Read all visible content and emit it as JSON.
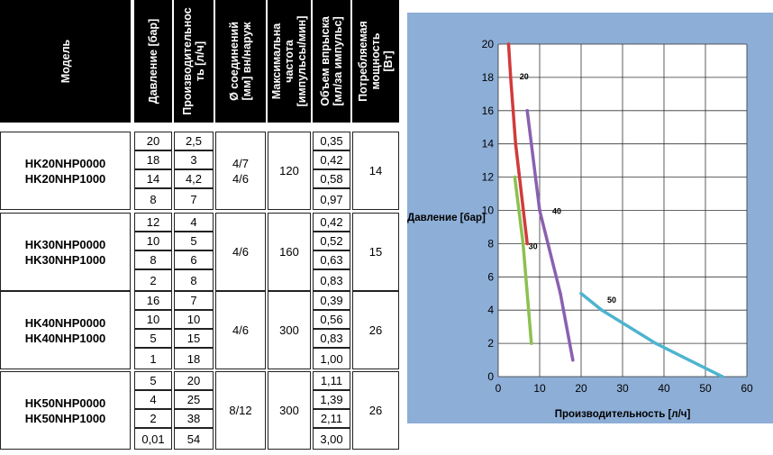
{
  "table": {
    "headers": {
      "model": "Модель",
      "pressure": "Давление [бар]",
      "capacity": "Производительнос\nть [л/ч]",
      "connection": "Ø соединений\n[мм] вн/наруж",
      "frequency": "Максимальна\nчастота\n[импульсы/мин]",
      "volume": "Объем впрыска\n[мл/за импульс]",
      "power": "Потребляемая\nмощность\n[Вт]"
    },
    "groups": [
      {
        "models": [
          "HK20NHP0000",
          "HK20NHP1000"
        ],
        "connection": [
          "4/7",
          "4/6"
        ],
        "frequency": "120",
        "power": "14",
        "rows": [
          {
            "pressure": "20",
            "capacity": "2,5",
            "volume": "0,35"
          },
          {
            "pressure": "18",
            "capacity": "3",
            "volume": "0,42"
          },
          {
            "pressure": "14",
            "capacity": "4,2",
            "volume": "0,58"
          },
          {
            "pressure": "8",
            "capacity": "7",
            "volume": "0,97"
          }
        ]
      },
      {
        "models": [
          "HK30NHP0000",
          "HK30NHP1000"
        ],
        "connection": [
          "4/6"
        ],
        "frequency": "160",
        "power": "15",
        "rows": [
          {
            "pressure": "12",
            "capacity": "4",
            "volume": "0,42"
          },
          {
            "pressure": "10",
            "capacity": "5",
            "volume": "0,52"
          },
          {
            "pressure": "8",
            "capacity": "6",
            "volume": "0,63"
          },
          {
            "pressure": "2",
            "capacity": "8",
            "volume": "0,83"
          }
        ]
      },
      {
        "models": [
          "HK40NHP0000",
          "HK40NHP1000"
        ],
        "connection": [
          "4/6"
        ],
        "frequency": "300",
        "power": "26",
        "rows": [
          {
            "pressure": "16",
            "capacity": "7",
            "volume": "0,39"
          },
          {
            "pressure": "10",
            "capacity": "10",
            "volume": "0,56"
          },
          {
            "pressure": "5",
            "capacity": "15",
            "volume": "0,83"
          },
          {
            "pressure": "1",
            "capacity": "18",
            "volume": "1,00"
          }
        ]
      },
      {
        "models": [
          "HK50NHP0000",
          "HK50NHP1000"
        ],
        "connection": [
          "8/12"
        ],
        "frequency": "300",
        "power": "26",
        "rows": [
          {
            "pressure": "5",
            "capacity": "20",
            "volume": "1,11"
          },
          {
            "pressure": "4",
            "capacity": "25",
            "volume": "1,39"
          },
          {
            "pressure": "2",
            "capacity": "38",
            "volume": "2,11"
          },
          {
            "pressure": "0,01",
            "capacity": "54",
            "volume": "3,00"
          }
        ]
      }
    ]
  },
  "chart_data": {
    "type": "line",
    "xlabel": "Производительность [л/ч]",
    "ylabel": "Давление [бар]",
    "xlim": [
      0,
      60
    ],
    "ylim": [
      0,
      20
    ],
    "xticks": [
      0,
      10,
      20,
      30,
      40,
      50,
      60
    ],
    "yticks": [
      0,
      2,
      4,
      6,
      8,
      10,
      12,
      14,
      16,
      18,
      20
    ],
    "grid": true,
    "series": [
      {
        "name": "20",
        "color": "#d23a3a",
        "x": [
          2.5,
          3,
          4.2,
          7
        ],
        "y": [
          20,
          18,
          14,
          8
        ]
      },
      {
        "name": "30",
        "color": "#8cc050",
        "x": [
          4,
          5,
          6,
          8
        ],
        "y": [
          12,
          10,
          8,
          2
        ]
      },
      {
        "name": "40",
        "color": "#8a60b0",
        "x": [
          7,
          10,
          15,
          18
        ],
        "y": [
          16,
          10,
          5,
          1
        ]
      },
      {
        "name": "50",
        "color": "#4eb4cf",
        "x": [
          20,
          25,
          38,
          54
        ],
        "y": [
          5,
          4,
          2,
          0.01
        ]
      }
    ]
  }
}
